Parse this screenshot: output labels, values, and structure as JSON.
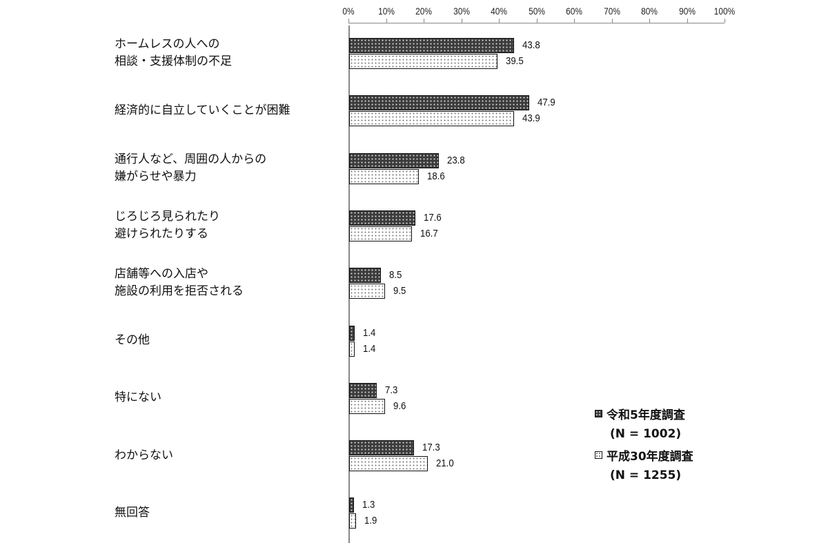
{
  "chart_data": {
    "type": "bar",
    "orientation": "horizontal",
    "title": "",
    "xlabel": "",
    "ylabel": "",
    "xlim": [
      0,
      100
    ],
    "x_ticks": [
      "0%",
      "10%",
      "20%",
      "30%",
      "40%",
      "50%",
      "60%",
      "70%",
      "80%",
      "90%",
      "100%"
    ],
    "grid": false,
    "legend_position": "lower right",
    "categories": [
      [
        "ホームレスの人への",
        "相談・支援体制の不足"
      ],
      [
        "経済的に自立していくことが困難"
      ],
      [
        "通行人など、周囲の人からの",
        "嫌がらせや暴力"
      ],
      [
        "じろじろ見られたり",
        "避けられたりする"
      ],
      [
        "店舗等への入店や",
        "施設の利用を拒否される"
      ],
      [
        "その他"
      ],
      [
        "特にない"
      ],
      [
        "わからない"
      ],
      [
        "無回答"
      ]
    ],
    "series": [
      {
        "name": "令和5年度調査",
        "n_label": "(N = 1002)",
        "style": "dark-dotted",
        "values": [
          43.8,
          47.9,
          23.8,
          17.6,
          8.5,
          1.4,
          7.3,
          17.3,
          1.3
        ],
        "value_labels": [
          "43.8",
          "47.9",
          "23.8",
          "17.6",
          "8.5",
          "1.4",
          "7.3",
          "17.3",
          "1.3"
        ]
      },
      {
        "name": "平成30年度調査",
        "n_label": "(N = 1255)",
        "style": "light-dotted",
        "values": [
          39.5,
          43.9,
          18.6,
          16.7,
          9.5,
          1.4,
          9.6,
          21.0,
          1.9
        ],
        "value_labels": [
          "39.5",
          "43.9",
          "18.6",
          "16.7",
          "9.5",
          "1.4",
          "9.6",
          "21.0",
          "1.9"
        ]
      }
    ]
  },
  "colors": {
    "dark_bar": "#3c3c3c",
    "light_bar": "#ffffff",
    "axis": "#888888",
    "text": "#111111"
  }
}
